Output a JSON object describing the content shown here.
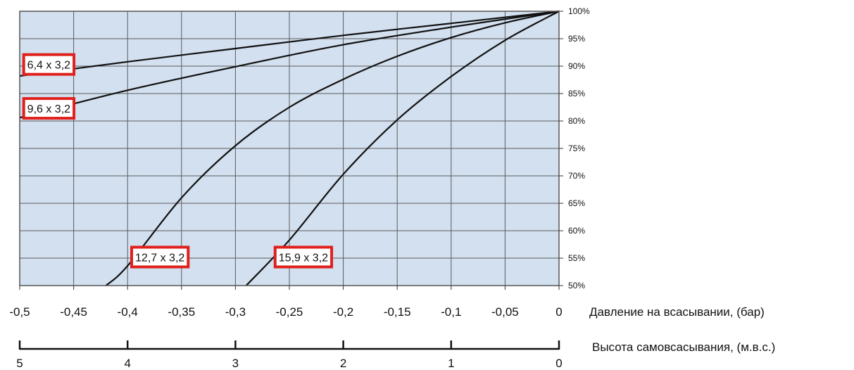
{
  "chart_data": {
    "type": "line",
    "xlabel": "Давление на всасывании, (бар)",
    "x2label": "Высота самовсасывания, (м.в.с.)",
    "xlim": [
      -0.5,
      0
    ],
    "ylim": [
      50,
      100
    ],
    "x_ticks": [
      -0.5,
      -0.45,
      -0.4,
      -0.35,
      -0.3,
      -0.25,
      -0.2,
      -0.15,
      -0.1,
      -0.05,
      0
    ],
    "x_tick_labels": [
      "-0,5",
      "-0,45",
      "-0,4",
      "-0,35",
      "-0,3",
      "-0,25",
      "-0,2",
      "-0,15",
      "-0,1",
      "-0,05",
      "0"
    ],
    "x2_ticks": [
      5,
      4,
      3,
      2,
      1,
      0
    ],
    "y_ticks": [
      50,
      55,
      60,
      65,
      70,
      75,
      80,
      85,
      90,
      95,
      100
    ],
    "y_tick_labels": [
      "50%",
      "55%",
      "60%",
      "65%",
      "70%",
      "75%",
      "80%",
      "85%",
      "90%",
      "95%",
      "100%"
    ],
    "grid": true,
    "plot_background": "#d3e0f0",
    "line_color": "#111111",
    "label_border_color": "#e0201c",
    "series": [
      {
        "name": "6,4 x 3,2",
        "x": [
          -0.5,
          -0.4,
          -0.3,
          -0.2,
          -0.1,
          0
        ],
        "y": [
          88.2,
          90.8,
          93.2,
          95.6,
          97.8,
          100
        ]
      },
      {
        "name": "9,6 x 3,2",
        "x": [
          -0.5,
          -0.4,
          -0.3,
          -0.2,
          -0.1,
          0
        ],
        "y": [
          80.6,
          85.6,
          89.9,
          93.9,
          97.1,
          100
        ]
      },
      {
        "name": "12,7 x 3,2",
        "x": [
          -0.42,
          -0.4,
          -0.35,
          -0.3,
          -0.25,
          -0.2,
          -0.15,
          -0.1,
          -0.05,
          0
        ],
        "y": [
          50,
          53.6,
          66,
          75.5,
          82.5,
          87.6,
          91.8,
          95.2,
          97.9,
          100
        ]
      },
      {
        "name": "15,9 x 3,2",
        "x": [
          -0.29,
          -0.25,
          -0.2,
          -0.15,
          -0.1,
          -0.05,
          0
        ],
        "y": [
          50,
          58.3,
          70.3,
          80.2,
          88.1,
          94.7,
          100
        ]
      }
    ],
    "annotations": [
      {
        "text": "6,4 x 3,2",
        "x": -0.473,
        "y": 90.3
      },
      {
        "text": "9,6 x 3,2",
        "x": -0.473,
        "y": 82.3
      },
      {
        "text": "12,7 x 3,2",
        "x": -0.37,
        "y": 55.2
      },
      {
        "text": "15,9 x 3,2",
        "x": -0.237,
        "y": 55.2
      }
    ]
  }
}
